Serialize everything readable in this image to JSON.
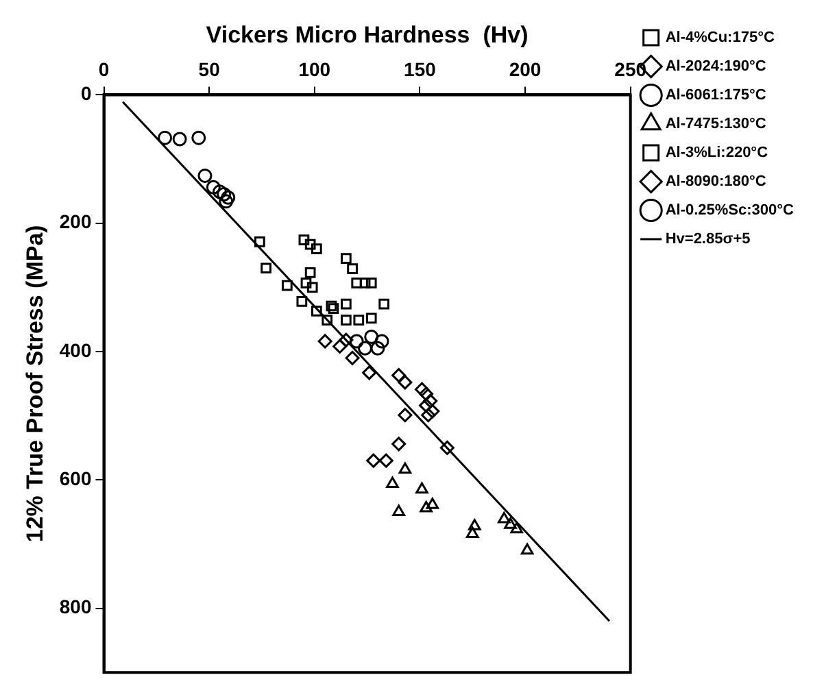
{
  "chart_data": {
    "type": "scatter",
    "xlabel": "Vickers Micro Hardness  (Hv)",
    "ylabel": "12% True Proof Stress (MPa)",
    "xlim": [
      0,
      250
    ],
    "xticks": [
      0,
      50,
      100,
      150,
      200,
      250
    ],
    "ylim": [
      900,
      0
    ],
    "yticks": [
      0,
      200,
      400,
      600,
      800
    ],
    "grid": false,
    "legend": "right",
    "series": [
      {
        "name": "Al-4%Cu:175°C",
        "color": "#000000",
        "marker": "square",
        "x": [
          87,
          98,
          99,
          96,
          94,
          101,
          106,
          115,
          115,
          121,
          127,
          109
        ],
        "values": [
          297,
          277,
          300,
          293,
          322,
          337,
          351,
          326,
          351,
          351,
          348,
          333
        ]
      },
      {
        "name": "Al-2024:190°C",
        "color": "#000000",
        "marker": "diamond",
        "x": [
          105,
          112,
          118,
          126,
          115,
          143,
          140,
          128,
          134,
          163
        ],
        "values": [
          384,
          392,
          410,
          433,
          382,
          499,
          544,
          570,
          570,
          550
        ]
      },
      {
        "name": "Al-6061:175°C",
        "color": "#000000",
        "marker": "circle",
        "x": [
          124,
          130,
          132,
          127,
          120
        ],
        "values": [
          395,
          395,
          384,
          377,
          384
        ]
      },
      {
        "name": "Al-7475:130°C",
        "color": "#000000",
        "marker": "triangle",
        "x": [
          137,
          143,
          140,
          151,
          153,
          156,
          190,
          193,
          196,
          201,
          175,
          176
        ],
        "values": [
          606,
          584,
          650,
          615,
          644,
          639,
          661,
          670,
          677,
          710,
          684,
          672
        ]
      },
      {
        "name": "Al-3%Li:220°C",
        "color": "#000000",
        "marker": "square",
        "x": [
          74,
          77,
          95,
          98,
          101,
          115,
          118,
          120,
          124,
          127,
          133,
          108
        ],
        "values": [
          229,
          270,
          226,
          233,
          240,
          255,
          271,
          293,
          293,
          293,
          326,
          329
        ]
      },
      {
        "name": "Al-8090:180°C",
        "color": "#000000",
        "marker": "diamond",
        "x": [
          151,
          153,
          155,
          153,
          156,
          154,
          140,
          143
        ],
        "values": [
          459,
          466,
          477,
          484,
          493,
          499,
          437,
          448
        ]
      },
      {
        "name": "Al-0.25%Sc:300°C",
        "color": "#000000",
        "marker": "circle",
        "x": [
          29,
          36,
          45,
          48,
          52,
          55,
          57,
          59,
          58
        ],
        "values": [
          67,
          69,
          67,
          126,
          144,
          151,
          155,
          160,
          166
        ]
      },
      {
        "name": "Hv=2.85σ+5",
        "type": "line",
        "color": "#000000",
        "marker": "none",
        "line_style": "solid",
        "x": [
          9,
          240
        ],
        "values": [
          11,
          820
        ]
      }
    ]
  }
}
